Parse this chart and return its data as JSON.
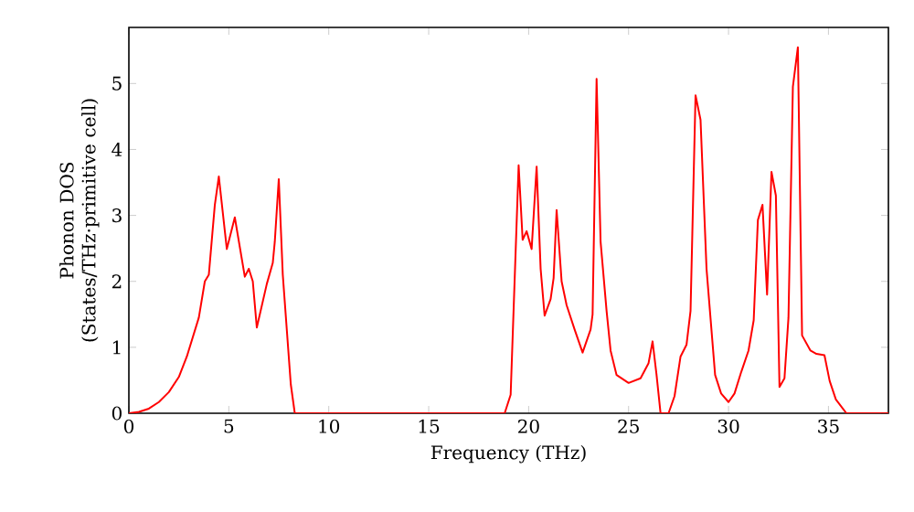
{
  "chart_data": {
    "type": "line",
    "xlabel": "Frequency (THz)",
    "ylabel": "Phonon DOS (States/THz·primitive cell)",
    "xlim": [
      0,
      38
    ],
    "ylim": [
      0,
      5.85
    ],
    "xticks": [
      0,
      5,
      10,
      15,
      20,
      25,
      30,
      35
    ],
    "yticks": [
      0,
      1,
      2,
      3,
      4,
      5
    ],
    "grid": false,
    "marker": "none",
    "line_style": "solid",
    "series": [
      {
        "color": "#ff0000",
        "x": [
          0,
          0.5,
          1.0,
          1.5,
          2.0,
          2.5,
          2.9,
          3.5,
          3.8,
          4.0,
          4.3,
          4.5,
          4.9,
          5.3,
          5.8,
          6.0,
          6.2,
          6.4,
          6.9,
          7.2,
          7.3,
          7.5,
          7.7,
          8.1,
          8.3,
          18.8,
          19.1,
          19.5,
          19.7,
          19.9,
          20.15,
          20.4,
          20.6,
          20.8,
          21.1,
          21.25,
          21.4,
          21.65,
          21.9,
          22.3,
          22.7,
          23.1,
          23.2,
          23.4,
          23.6,
          23.9,
          24.1,
          24.4,
          25.0,
          25.6,
          26.0,
          26.2,
          26.4,
          26.6,
          27.0,
          27.3,
          27.6,
          27.9,
          28.1,
          28.35,
          28.6,
          28.9,
          29.33,
          29.63,
          30.0,
          30.3,
          30.64,
          31.0,
          31.26,
          31.47,
          31.7,
          31.93,
          32.15,
          32.37,
          32.55,
          32.8,
          33.0,
          33.22,
          33.47,
          33.68,
          34.1,
          34.4,
          34.8,
          35.06,
          35.37,
          35.9,
          38
        ],
        "values": [
          0,
          0.02,
          0.07,
          0.17,
          0.32,
          0.55,
          0.86,
          1.45,
          2.0,
          2.1,
          3.16,
          3.59,
          2.49,
          2.97,
          2.07,
          2.19,
          2.0,
          1.3,
          1.96,
          2.28,
          2.6,
          3.55,
          2.1,
          0.44,
          0,
          0,
          0.28,
          3.76,
          2.63,
          2.76,
          2.49,
          3.74,
          2.19,
          1.48,
          1.73,
          2.05,
          3.08,
          2.0,
          1.64,
          1.27,
          0.92,
          1.27,
          1.5,
          5.07,
          2.6,
          1.55,
          0.95,
          0.58,
          0.46,
          0.53,
          0.76,
          1.09,
          0.58,
          0,
          0,
          0.26,
          0.86,
          1.04,
          1.55,
          4.82,
          4.45,
          2.19,
          0.58,
          0.3,
          0.17,
          0.3,
          0.63,
          0.95,
          1.41,
          2.93,
          3.16,
          1.8,
          3.66,
          3.3,
          0.4,
          0.53,
          1.45,
          4.95,
          5.55,
          1.18,
          0.95,
          0.9,
          0.88,
          0.49,
          0.21,
          0,
          0
        ]
      }
    ]
  }
}
